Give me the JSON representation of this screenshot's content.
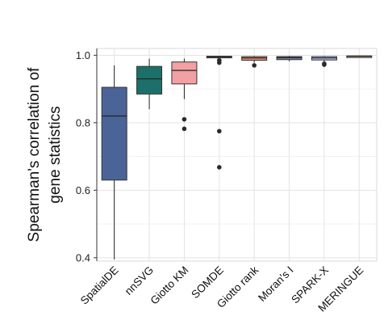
{
  "chart_data": {
    "type": "box",
    "ylabel": [
      "Spearman's correlation of",
      "gene statistics"
    ],
    "xlabel": "",
    "title": "",
    "ylim": [
      0.39,
      1.02
    ],
    "yticks": [
      0.4,
      0.6,
      0.8,
      1.0
    ],
    "ytick_labels": [
      "0.4",
      "0.6",
      "0.8",
      "1.0"
    ],
    "grid": true,
    "legend": "none",
    "categories": [
      "SpatialDE",
      "nnSVG",
      "Giotto KM",
      "SOMDE",
      "Giotto rank",
      "Moran's I",
      "SPARK-X",
      "MERINGUE"
    ],
    "boxes": [
      {
        "category": "SpatialDE",
        "whisker_low": 0.395,
        "q1": 0.63,
        "median": 0.82,
        "q3": 0.905,
        "whisker_high": 0.97,
        "outliers": [],
        "color": "#4a6497"
      },
      {
        "category": "nnSVG",
        "whisker_low": 0.84,
        "q1": 0.885,
        "median": 0.93,
        "q3": 0.967,
        "whisker_high": 0.99,
        "outliers": [],
        "color": "#1d6f6a"
      },
      {
        "category": "Giotto KM",
        "whisker_low": 0.87,
        "q1": 0.915,
        "median": 0.955,
        "q3": 0.98,
        "whisker_high": 0.99,
        "outliers": [
          0.81,
          0.782
        ],
        "color": "#f2a0a4"
      },
      {
        "category": "SOMDE",
        "whisker_low": 0.99,
        "q1": 0.993,
        "median": 0.995,
        "q3": 0.997,
        "whisker_high": 0.998,
        "outliers": [
          0.985,
          0.978,
          0.775,
          0.668
        ],
        "color": "#ced6e6"
      },
      {
        "category": "Giotto rank",
        "whisker_low": 0.978,
        "q1": 0.985,
        "median": 0.992,
        "q3": 0.996,
        "whisker_high": 0.998,
        "outliers": [
          0.97
        ],
        "color": "#d98a70"
      },
      {
        "category": "Moran's I",
        "whisker_low": 0.982,
        "q1": 0.987,
        "median": 0.993,
        "q3": 0.996,
        "whisker_high": 0.998,
        "outliers": [],
        "color": "#6d7f99"
      },
      {
        "category": "SPARK-X",
        "whisker_low": 0.98,
        "q1": 0.986,
        "median": 0.992,
        "q3": 0.996,
        "whisker_high": 0.998,
        "outliers": [
          0.975,
          0.972
        ],
        "color": "#b6bde8"
      },
      {
        "category": "MERINGUE",
        "whisker_low": 0.993,
        "q1": 0.995,
        "median": 0.997,
        "q3": 0.998,
        "whisker_high": 0.999,
        "outliers": [],
        "color": "#f0d8b8"
      }
    ]
  }
}
